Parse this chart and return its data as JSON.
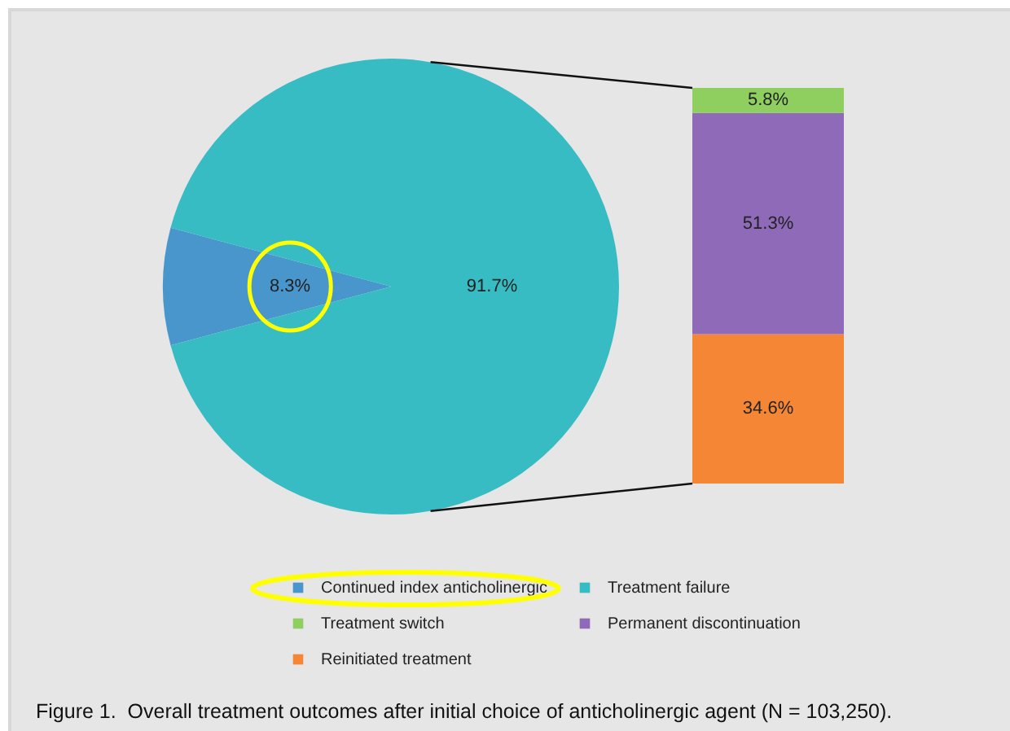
{
  "chart_data": [
    {
      "type": "pie",
      "categories": [
        "Continued index anticholinergic",
        "Treatment failure"
      ],
      "values": [
        8.3,
        91.7
      ],
      "colors": [
        "#4896cc",
        "#38bcc4"
      ],
      "value_labels": [
        "8.3%",
        "91.7%"
      ],
      "legend": "bottom",
      "annotations": [
        "Figure 1.  Overall treatment outcomes after initial choice of anticholinergic agent (N = 103,250)."
      ]
    },
    {
      "type": "bar",
      "stacked": true,
      "categories": [
        null
      ],
      "series": [
        {
          "name": "Reinitiated treatment",
          "color": "#f48636",
          "values": [
            34.6
          ],
          "value_labels": [
            "34.6%"
          ]
        },
        {
          "name": "Permanent discontinuation",
          "color": "#8e6ab8",
          "values": [
            51.3
          ],
          "value_labels": [
            "51.3%"
          ]
        },
        {
          "name": "Treatment switch",
          "color": "#8fcf5f",
          "values": [
            5.8
          ],
          "value_labels": [
            "5.8%"
          ]
        }
      ],
      "legend": "bottom"
    }
  ]
}
